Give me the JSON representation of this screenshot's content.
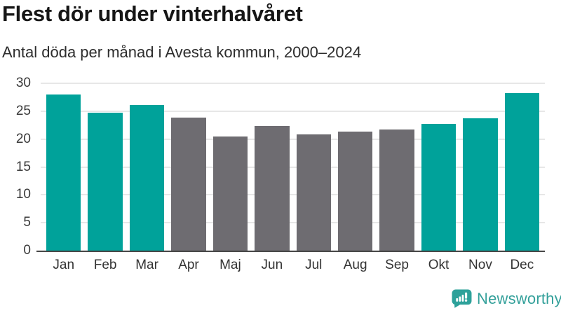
{
  "header": {
    "title": "Flest dör under vinterhalvåret",
    "subtitle": "Antal döda per månad i Avesta kommun, 2000–2024"
  },
  "chart_data": {
    "type": "bar",
    "title": "Flest dör under vinterhalvåret",
    "subtitle": "Antal döda per månad i Avesta kommun, 2000–2024",
    "categories": [
      "Jan",
      "Feb",
      "Mar",
      "Apr",
      "Maj",
      "Jun",
      "Jul",
      "Aug",
      "Sep",
      "Okt",
      "Nov",
      "Dec"
    ],
    "values": [
      28.0,
      24.7,
      26.1,
      23.8,
      20.5,
      22.4,
      20.8,
      21.4,
      21.7,
      22.7,
      23.7,
      28.3
    ],
    "colors": [
      "#00a29a",
      "#00a29a",
      "#00a29a",
      "#6e6c71",
      "#6e6c71",
      "#6e6c71",
      "#6e6c71",
      "#6e6c71",
      "#6e6c71",
      "#00a29a",
      "#00a29a",
      "#00a29a"
    ],
    "highlight_color": "#00a29a",
    "muted_color": "#6e6c71",
    "highlighted_categories": [
      "Jan",
      "Feb",
      "Mar",
      "Okt",
      "Nov",
      "Dec"
    ],
    "xlabel": "",
    "ylabel": "",
    "ylim": [
      0,
      30
    ],
    "yticks": [
      0,
      5,
      10,
      15,
      20,
      25,
      30
    ],
    "grid": "horizontal",
    "legend": "none"
  },
  "footer": {
    "brand": "Newsworthy",
    "brand_color": "#33a09a",
    "icon_color": "#2da19a"
  }
}
